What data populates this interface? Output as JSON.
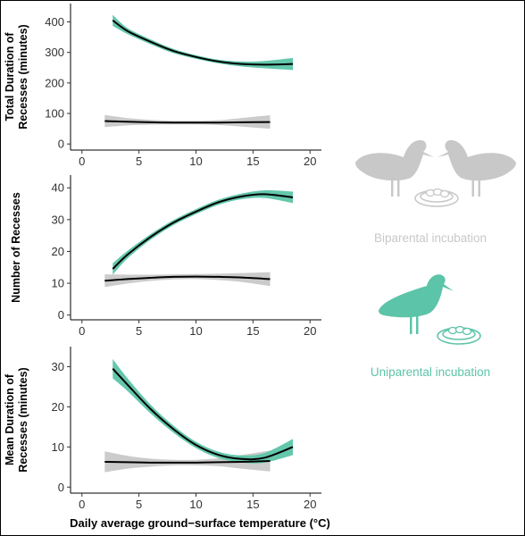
{
  "chart_data": [
    {
      "type": "line",
      "ylabel": "Total Duration of Recesses (minutes)",
      "ylabel_lines": [
        "Total Duration of",
        "Recesses (minutes)"
      ],
      "xlim": [
        -1,
        21
      ],
      "ylim": [
        -20,
        460
      ],
      "xticks": [
        0,
        5,
        10,
        15,
        20
      ],
      "yticks": [
        0,
        100,
        200,
        300,
        400
      ],
      "grid": false,
      "series": [
        {
          "group": "uniparental",
          "color": "#5cc4a8",
          "x": [
            2.7,
            4,
            6,
            8,
            10,
            12,
            14,
            16,
            18.5
          ],
          "y": [
            405,
            370,
            335,
            305,
            285,
            270,
            262,
            260,
            262
          ],
          "band_half_width": [
            18,
            10,
            8,
            7,
            6,
            6,
            8,
            12,
            20
          ]
        },
        {
          "group": "biparental",
          "color": "#c8c8c8",
          "x": [
            2,
            4,
            6,
            8,
            10,
            12,
            14,
            16.5
          ],
          "y": [
            75,
            73,
            71,
            70,
            70,
            70,
            71,
            72
          ],
          "band_half_width": [
            20,
            12,
            8,
            6,
            6,
            8,
            14,
            22
          ]
        }
      ]
    },
    {
      "type": "line",
      "ylabel": "Number of Recesses",
      "ylabel_lines": [
        "Number of Recesses"
      ],
      "xlim": [
        -1,
        21
      ],
      "ylim": [
        -1.5,
        44
      ],
      "xticks": [
        0,
        5,
        10,
        15,
        20
      ],
      "yticks": [
        0,
        10,
        20,
        30,
        40
      ],
      "grid": false,
      "series": [
        {
          "group": "uniparental",
          "color": "#5cc4a8",
          "x": [
            2.7,
            4,
            6,
            8,
            10,
            12,
            14,
            16,
            18.5
          ],
          "y": [
            14.5,
            19,
            24.5,
            29,
            32.5,
            35.5,
            37.3,
            38,
            37
          ],
          "band_half_width": [
            1.8,
            1.2,
            0.9,
            0.8,
            0.8,
            0.8,
            0.9,
            1.2,
            1.8
          ]
        },
        {
          "group": "biparental",
          "color": "#c8c8c8",
          "x": [
            2,
            4,
            6,
            8,
            10,
            12,
            14,
            16.5
          ],
          "y": [
            10.8,
            11.3,
            11.7,
            12,
            12.1,
            12,
            11.8,
            11.3
          ],
          "band_half_width": [
            2,
            1.4,
            1,
            0.8,
            0.8,
            1,
            1.4,
            2.2
          ]
        }
      ]
    },
    {
      "type": "line",
      "ylabel": "Mean Duration of Recesses (minutes)",
      "ylabel_lines": [
        "Mean Duration of",
        "Recesses (minutes)"
      ],
      "xlim": [
        -1,
        21
      ],
      "ylim": [
        -1.5,
        35
      ],
      "xticks": [
        0,
        5,
        10,
        15,
        20
      ],
      "yticks": [
        0,
        10,
        20,
        30
      ],
      "grid": false,
      "series": [
        {
          "group": "uniparental",
          "color": "#5cc4a8",
          "x": [
            2.7,
            4,
            6,
            8,
            10,
            12,
            14,
            16,
            18.5
          ],
          "y": [
            29.5,
            25.5,
            19.5,
            14.5,
            10.5,
            8,
            7,
            7.3,
            10
          ],
          "band_half_width": [
            2.4,
            1.6,
            1.1,
            0.9,
            0.8,
            0.8,
            0.9,
            1.2,
            2
          ]
        },
        {
          "group": "biparental",
          "color": "#c8c8c8",
          "x": [
            2,
            4,
            6,
            8,
            10,
            12,
            14,
            16.5
          ],
          "y": [
            6.3,
            6.2,
            6.1,
            6.1,
            6.1,
            6.2,
            6.3,
            6.5
          ],
          "band_half_width": [
            2.6,
            1.6,
            1,
            0.7,
            0.7,
            1,
            1.7,
            2.6
          ]
        }
      ]
    }
  ],
  "xlabel": "Daily average ground−surface temperature (°C)",
  "legend": {
    "biparental": {
      "label": "Biparental incubation",
      "color": "#c8c8c8"
    },
    "uniparental": {
      "label": "Uniparental incubation",
      "color": "#5cc4a8"
    }
  },
  "fit_line_color": "#000000",
  "icons": {
    "bird": "shorebird-silhouette-icon",
    "nest": "nest-with-eggs-icon"
  }
}
